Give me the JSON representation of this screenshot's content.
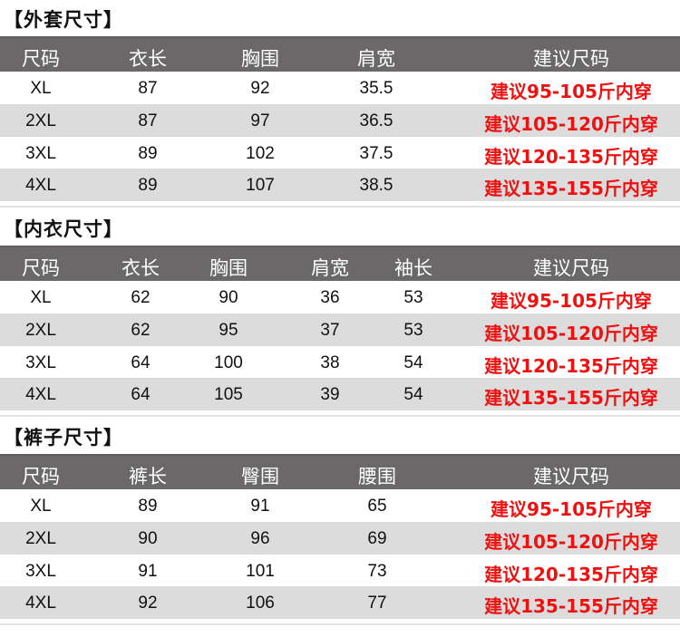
{
  "sections": [
    {
      "title": "【外套尺寸】",
      "headers": [
        "尺码",
        "衣长",
        "胸围",
        "肩宽",
        "建议尺码"
      ],
      "rows": [
        [
          "XL",
          "87",
          "92",
          "35.5",
          "建议95-105斤内穿"
        ],
        [
          "2XL",
          "87",
          "97",
          "36.5",
          "建议105-120斤内穿"
        ],
        [
          "3XL",
          "89",
          "102",
          "37.5",
          "建议120-135斤内穿"
        ],
        [
          "4XL",
          "89",
          "107",
          "38.5",
          "建议135-155斤内穿"
        ]
      ]
    },
    {
      "title": "【内衣尺寸】",
      "headers": [
        "尺码",
        "衣长",
        "胸围",
        "肩宽",
        "袖长",
        "建议尺码"
      ],
      "rows": [
        [
          "XL",
          "62",
          "90",
          "36",
          "53",
          "建议95-105斤内穿"
        ],
        [
          "2XL",
          "62",
          "95",
          "37",
          "53",
          "建议105-120斤内穿"
        ],
        [
          "3XL",
          "64",
          "100",
          "38",
          "54",
          "建议120-135斤内穿"
        ],
        [
          "4XL",
          "64",
          "105",
          "39",
          "54",
          "建议135-155斤内穿"
        ]
      ]
    },
    {
      "title": "【裤子尺寸】",
      "headers": [
        "尺码",
        "裤长",
        "臀围",
        "腰围",
        "建议尺码"
      ],
      "rows": [
        [
          "XL",
          "89",
          "91",
          "65",
          "建议95-105斤内穿"
        ],
        [
          "2XL",
          "90",
          "96",
          "69",
          "建议105-120斤内穿"
        ],
        [
          "3XL",
          "91",
          "101",
          "73",
          "建议120-135斤内穿"
        ],
        [
          "4XL",
          "92",
          "106",
          "77",
          "建议135-155斤内穿"
        ]
      ]
    }
  ],
  "colors": {
    "header_bg": "#6a6869",
    "alt_row": "#dcdcdc",
    "recommend_text": "#ee1111"
  }
}
